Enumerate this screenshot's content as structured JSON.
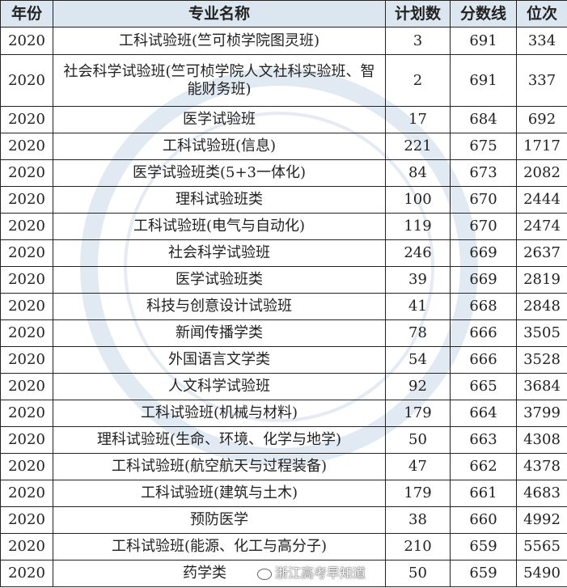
{
  "headers": [
    "年份",
    "专业名称",
    "计划数",
    "分数线",
    "位次"
  ],
  "rows": [
    [
      "2020",
      "工科试验班(竺可桢学院图灵班)",
      "3",
      "691",
      "334"
    ],
    [
      "2020",
      "社会科学试验班(竺可桢学院人文社科实验班、智能财务班)",
      "2",
      "691",
      "337"
    ],
    [
      "2020",
      "医学试验班",
      "17",
      "684",
      "692"
    ],
    [
      "2020",
      "工科试验班(信息)",
      "221",
      "675",
      "1717"
    ],
    [
      "2020",
      "医学试验班类(5+3一体化)",
      "84",
      "673",
      "2082"
    ],
    [
      "2020",
      "理科试验班类",
      "100",
      "670",
      "2444"
    ],
    [
      "2020",
      "工科试验班(电气与自动化)",
      "119",
      "670",
      "2474"
    ],
    [
      "2020",
      "社会科学试验班",
      "246",
      "669",
      "2637"
    ],
    [
      "2020",
      "医学试验班类",
      "39",
      "669",
      "2819"
    ],
    [
      "2020",
      "科技与创意设计试验班",
      "41",
      "668",
      "2848"
    ],
    [
      "2020",
      "新闻传播学类",
      "78",
      "666",
      "3505"
    ],
    [
      "2020",
      "外国语言文学类",
      "54",
      "666",
      "3528"
    ],
    [
      "2020",
      "人文科学试验班",
      "92",
      "665",
      "3684"
    ],
    [
      "2020",
      "工科试验班(机械与材料)",
      "179",
      "664",
      "3799"
    ],
    [
      "2020",
      "理科试验班(生命、环境、化学与地学)",
      "50",
      "663",
      "4308"
    ],
    [
      "2020",
      "工科试验班(航空航天与过程装备)",
      "47",
      "662",
      "4378"
    ],
    [
      "2020",
      "工科试验班(建筑与土木)",
      "179",
      "661",
      "4683"
    ],
    [
      "2020",
      "预防医学",
      "38",
      "660",
      "4992"
    ],
    [
      "2020",
      "工科试验班(能源、化工与高分子)",
      "210",
      "659",
      "5565"
    ],
    [
      "2020",
      "药学类",
      "50",
      "659",
      "5490"
    ]
  ],
  "watermark": {
    "seal_text": "浙江高考早知道",
    "footer_text": "浙江高考早知道",
    "color": "#c9d8ea"
  },
  "colors": {
    "header_bg": "#dce6f0",
    "border": "#222222"
  }
}
